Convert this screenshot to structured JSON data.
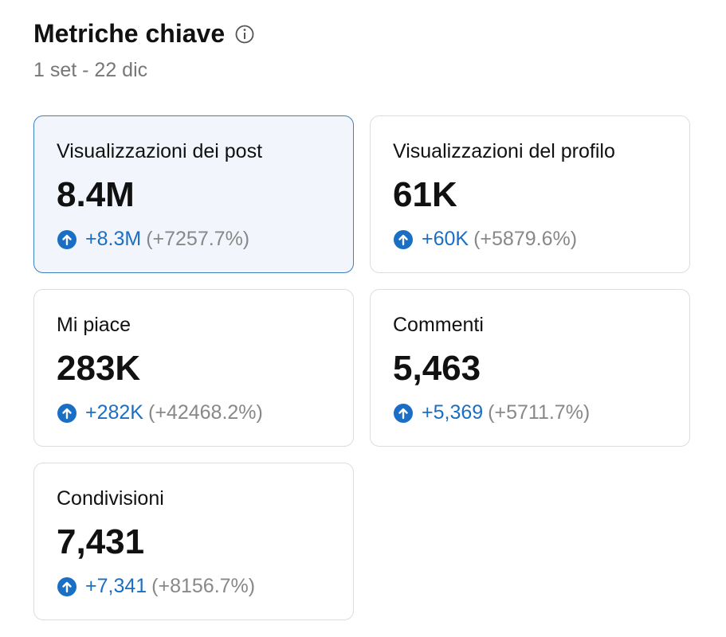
{
  "header": {
    "title": "Metriche chiave",
    "date_range": "1 set - 22 dic"
  },
  "cards": [
    {
      "label": "Visualizzazioni dei post",
      "value": "8.4M",
      "change": "+8.3M",
      "percent": "(+7257.7%)"
    },
    {
      "label": "Visualizzazioni del profilo",
      "value": "61K",
      "change": "+60K",
      "percent": "(+5879.6%)"
    },
    {
      "label": "Mi piace",
      "value": "283K",
      "change": "+282K",
      "percent": "(+42468.2%)"
    },
    {
      "label": "Commenti",
      "value": "5,463",
      "change": "+5,369",
      "percent": "(+5711.7%)"
    },
    {
      "label": "Condivisioni",
      "value": "7,431",
      "change": "+7,341",
      "percent": "(+8156.7%)"
    }
  ]
}
